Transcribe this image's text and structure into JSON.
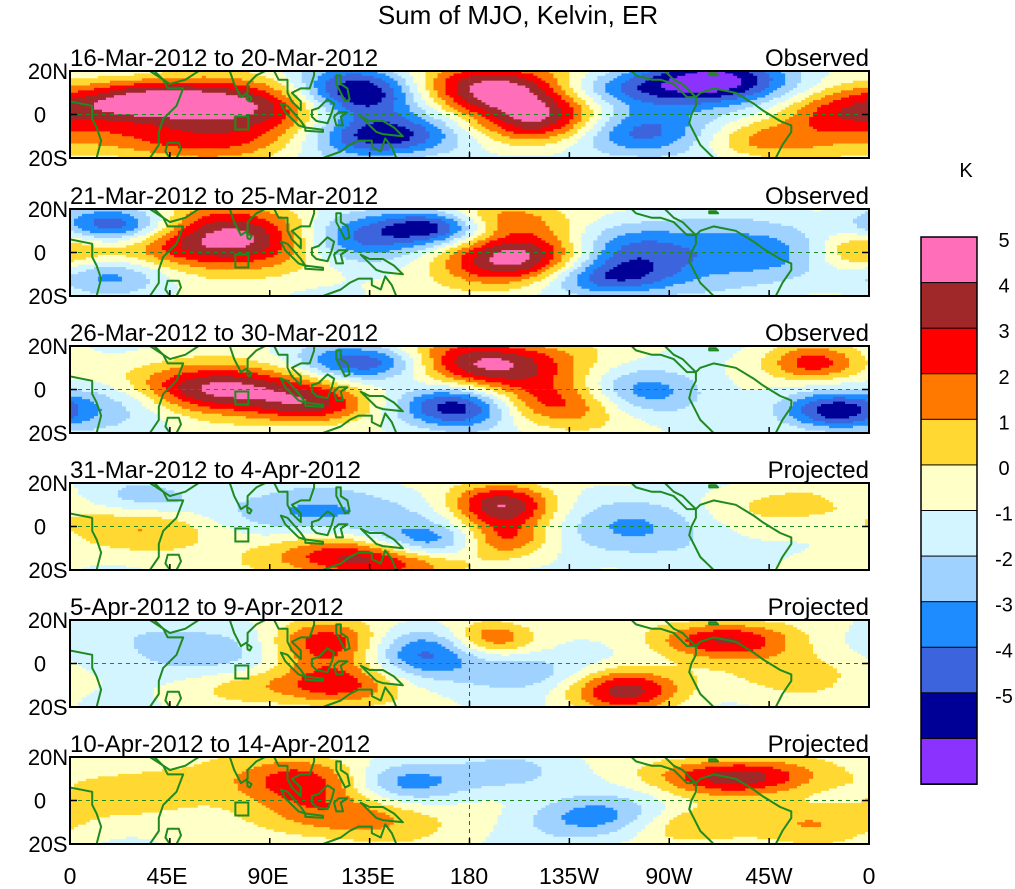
{
  "chart_data": {
    "type": "heatmap",
    "title": "Sum of MJO, Kelvin, ER",
    "units": "K",
    "y_tick_labels": [
      "20N",
      "0",
      "20S"
    ],
    "x_tick_labels": [
      "0",
      "45E",
      "90E",
      "135E",
      "180",
      "135W",
      "90W",
      "45W",
      "0"
    ],
    "x_range_deg": [
      0,
      360
    ],
    "y_range_deg": [
      -20,
      20
    ],
    "colorbar": {
      "labels": [
        "5",
        "4",
        "3",
        "2",
        "1",
        "0",
        "-1",
        "-2",
        "-3",
        "-4",
        "-5"
      ],
      "colors": [
        "#ff6eb8",
        "#a02828",
        "#ff0000",
        "#ff7800",
        "#ffd832",
        "#ffffc8",
        "#d2f5ff",
        "#a0d2ff",
        "#1e8cff",
        "#3c64dc",
        "#000096",
        "#8c32ff"
      ]
    },
    "panels": [
      {
        "period": "16-Mar-2012 to 20-Mar-2012",
        "label": "Observed",
        "blobs": [
          [
            38,
            6,
            28,
            7,
            5.5
          ],
          [
            85,
            3,
            26,
            9,
            4
          ],
          [
            55,
            -12,
            40,
            7,
            3
          ],
          [
            130,
            10,
            20,
            8,
            -6
          ],
          [
            195,
            12,
            28,
            8,
            6
          ],
          [
            215,
            -4,
            22,
            8,
            5.5
          ],
          [
            138,
            -10,
            25,
            7,
            -5
          ],
          [
            250,
            -8,
            30,
            8,
            -4
          ],
          [
            290,
            15,
            25,
            8,
            -5.5
          ],
          [
            240,
            12,
            25,
            6,
            -3
          ],
          [
            345,
            0,
            20,
            8,
            3.5
          ],
          [
            310,
            -12,
            20,
            6,
            2.5
          ]
        ]
      },
      {
        "period": "21-Mar-2012 to 25-Mar-2012",
        "label": "Observed",
        "blobs": [
          [
            70,
            6,
            32,
            10,
            6
          ],
          [
            15,
            -10,
            20,
            6,
            -3
          ],
          [
            20,
            12,
            20,
            6,
            -5
          ],
          [
            125,
            6,
            20,
            8,
            -4
          ],
          [
            165,
            12,
            18,
            6,
            -5.5
          ],
          [
            200,
            -3,
            24,
            9,
            5.5
          ],
          [
            190,
            16,
            22,
            6,
            3
          ],
          [
            250,
            0,
            20,
            9,
            -2.5
          ],
          [
            240,
            -12,
            22,
            6,
            -3.5
          ],
          [
            300,
            0,
            30,
            10,
            -3
          ],
          [
            355,
            0,
            15,
            9,
            3
          ]
        ]
      },
      {
        "period": "26-Mar-2012 to 30-Mar-2012",
        "label": "Observed",
        "blobs": [
          [
            65,
            0,
            32,
            8,
            6
          ],
          [
            135,
            12,
            22,
            6,
            -5
          ],
          [
            185,
            12,
            30,
            8,
            5.5
          ],
          [
            175,
            -8,
            18,
            7,
            -5
          ],
          [
            110,
            -8,
            18,
            6,
            3
          ],
          [
            255,
            -2,
            22,
            8,
            -3.5
          ],
          [
            225,
            -6,
            25,
            8,
            4
          ],
          [
            345,
            -10,
            16,
            6,
            -4.5
          ],
          [
            335,
            12,
            15,
            6,
            3.5
          ],
          [
            25,
            -4,
            20,
            8,
            -3
          ]
        ]
      },
      {
        "period": "31-Mar-2012 to 4-Apr-2012",
        "label": "Projected",
        "blobs": [
          [
            195,
            10,
            16,
            7,
            5
          ],
          [
            195,
            -6,
            14,
            6,
            3
          ],
          [
            135,
            -14,
            30,
            7,
            5
          ],
          [
            160,
            -8,
            20,
            6,
            -4
          ],
          [
            40,
            0,
            28,
            9,
            2
          ],
          [
            110,
            6,
            30,
            8,
            -2.5
          ],
          [
            260,
            0,
            30,
            10,
            -2
          ],
          [
            320,
            8,
            30,
            8,
            1.5
          ],
          [
            35,
            12,
            20,
            6,
            -2
          ]
        ]
      },
      {
        "period": "5-Apr-2012 to 9-Apr-2012",
        "label": "Projected",
        "blobs": [
          [
            115,
            10,
            18,
            8,
            4
          ],
          [
            120,
            -10,
            20,
            7,
            3.5
          ],
          [
            160,
            5,
            18,
            8,
            -3
          ],
          [
            190,
            12,
            14,
            6,
            3
          ],
          [
            250,
            -12,
            18,
            7,
            4.5
          ],
          [
            295,
            11,
            22,
            6,
            4
          ],
          [
            205,
            -4,
            20,
            7,
            -2
          ],
          [
            55,
            6,
            40,
            10,
            -1.5
          ],
          [
            330,
            -4,
            20,
            8,
            2
          ],
          [
            75,
            -10,
            20,
            6,
            1.5
          ]
        ]
      },
      {
        "period": "10-Apr-2012 to 14-Apr-2012",
        "label": "Projected",
        "blobs": [
          [
            105,
            10,
            20,
            8,
            3
          ],
          [
            130,
            -8,
            30,
            8,
            2.5
          ],
          [
            150,
            8,
            18,
            7,
            -2.5
          ],
          [
            195,
            12,
            20,
            6,
            -1.5
          ],
          [
            235,
            -8,
            22,
            7,
            -2.5
          ],
          [
            300,
            11,
            26,
            6,
            4.5
          ],
          [
            335,
            -10,
            22,
            7,
            2
          ],
          [
            50,
            5,
            40,
            10,
            1.5
          ],
          [
            280,
            -12,
            20,
            6,
            2
          ]
        ]
      }
    ]
  }
}
